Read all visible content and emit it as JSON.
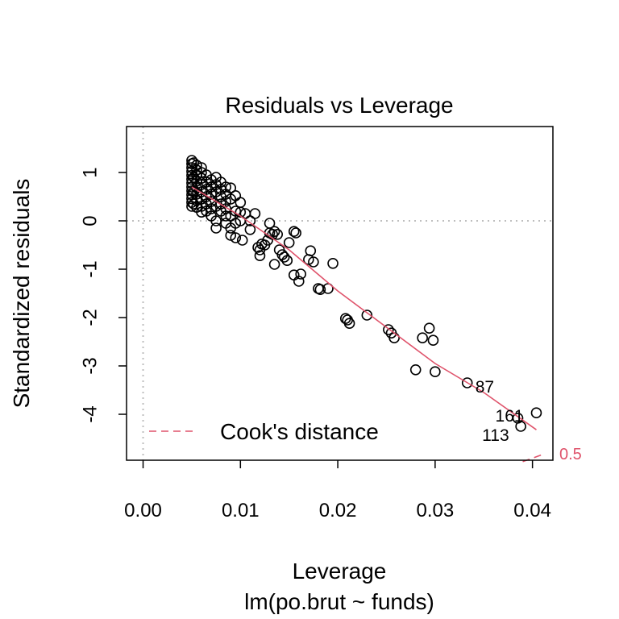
{
  "chart_data": {
    "type": "scatter",
    "title": "Residuals vs Leverage",
    "xlabel": "Leverage",
    "sublabel": "lm(po.brut ~ funds)",
    "ylabel": "Standardized residuals",
    "xlim": [
      -0.0017,
      0.0421
    ],
    "ylim": [
      -4.95,
      1.95
    ],
    "x_ticks": [
      0.0,
      0.01,
      0.02,
      0.03,
      0.04
    ],
    "x_tick_labels": [
      "0.00",
      "0.01",
      "0.02",
      "0.03",
      "0.04"
    ],
    "y_ticks": [
      -4,
      -3,
      -2,
      -1,
      0,
      1
    ],
    "y_tick_labels": [
      "-4",
      "-3",
      "-2",
      "-1",
      "0",
      "1"
    ],
    "points": [
      [
        0.005,
        1.25
      ],
      [
        0.005,
        1.18
      ],
      [
        0.005,
        1.1
      ],
      [
        0.005,
        1.02
      ],
      [
        0.005,
        0.94
      ],
      [
        0.005,
        0.86
      ],
      [
        0.005,
        0.78
      ],
      [
        0.005,
        0.7
      ],
      [
        0.005,
        0.62
      ],
      [
        0.005,
        0.54
      ],
      [
        0.005,
        0.46
      ],
      [
        0.005,
        0.38
      ],
      [
        0.005,
        0.3
      ],
      [
        0.0052,
        1.2
      ],
      [
        0.0052,
        0.9
      ],
      [
        0.0052,
        0.6
      ],
      [
        0.0052,
        0.35
      ],
      [
        0.0055,
        1.15
      ],
      [
        0.0055,
        1.05
      ],
      [
        0.0055,
        0.95
      ],
      [
        0.0055,
        0.82
      ],
      [
        0.0055,
        0.68
      ],
      [
        0.0055,
        0.55
      ],
      [
        0.0055,
        0.42
      ],
      [
        0.0055,
        0.28
      ],
      [
        0.006,
        1.1
      ],
      [
        0.006,
        1.0
      ],
      [
        0.006,
        0.88
      ],
      [
        0.006,
        0.75
      ],
      [
        0.006,
        0.6
      ],
      [
        0.006,
        0.45
      ],
      [
        0.006,
        0.3
      ],
      [
        0.006,
        0.18
      ],
      [
        0.0065,
        0.95
      ],
      [
        0.0065,
        0.8
      ],
      [
        0.0065,
        0.65
      ],
      [
        0.0065,
        0.5
      ],
      [
        0.0065,
        0.35
      ],
      [
        0.0065,
        0.2
      ],
      [
        0.007,
        0.85
      ],
      [
        0.007,
        0.7
      ],
      [
        0.007,
        0.55
      ],
      [
        0.007,
        0.4
      ],
      [
        0.007,
        0.25
      ],
      [
        0.007,
        0.1
      ],
      [
        0.0075,
        0.9
      ],
      [
        0.0075,
        0.75
      ],
      [
        0.0075,
        0.6
      ],
      [
        0.0075,
        0.3
      ],
      [
        0.0075,
        0.0
      ],
      [
        0.0075,
        -0.15
      ],
      [
        0.008,
        0.8
      ],
      [
        0.008,
        0.65
      ],
      [
        0.008,
        0.5
      ],
      [
        0.008,
        0.35
      ],
      [
        0.008,
        0.2
      ],
      [
        0.0085,
        0.7
      ],
      [
        0.0085,
        0.55
      ],
      [
        0.0085,
        0.4
      ],
      [
        0.0085,
        0.25
      ],
      [
        0.0085,
        0.1
      ],
      [
        0.0085,
        -0.05
      ],
      [
        0.009,
        0.68
      ],
      [
        0.009,
        0.45
      ],
      [
        0.009,
        0.1
      ],
      [
        0.009,
        -0.15
      ],
      [
        0.009,
        -0.3
      ],
      [
        0.0095,
        0.52
      ],
      [
        0.0095,
        0.2
      ],
      [
        0.0095,
        -0.05
      ],
      [
        0.0095,
        -0.35
      ],
      [
        0.01,
        0.38
      ],
      [
        0.01,
        0.18
      ],
      [
        0.01,
        0.0
      ],
      [
        0.0102,
        -0.4
      ],
      [
        0.0105,
        0.15
      ],
      [
        0.011,
        0.0
      ],
      [
        0.011,
        -0.18
      ],
      [
        0.0115,
        0.15
      ],
      [
        0.0118,
        -0.55
      ],
      [
        0.012,
        -0.6
      ],
      [
        0.012,
        -0.72
      ],
      [
        0.0122,
        -0.48
      ],
      [
        0.0125,
        -0.5
      ],
      [
        0.0128,
        -0.4
      ],
      [
        0.013,
        -0.25
      ],
      [
        0.013,
        -0.05
      ],
      [
        0.0133,
        -0.28
      ],
      [
        0.0135,
        -0.22
      ],
      [
        0.0135,
        -0.9
      ],
      [
        0.0138,
        -0.28
      ],
      [
        0.014,
        -0.6
      ],
      [
        0.0143,
        -0.7
      ],
      [
        0.0145,
        -0.75
      ],
      [
        0.0148,
        -0.82
      ],
      [
        0.015,
        -0.45
      ],
      [
        0.0155,
        -1.12
      ],
      [
        0.0155,
        -0.22
      ],
      [
        0.0157,
        -0.25
      ],
      [
        0.016,
        -1.25
      ],
      [
        0.0162,
        -1.1
      ],
      [
        0.017,
        -0.8
      ],
      [
        0.0172,
        -0.62
      ],
      [
        0.0175,
        -0.85
      ],
      [
        0.018,
        -1.4
      ],
      [
        0.0182,
        -1.42
      ],
      [
        0.019,
        -1.4
      ],
      [
        0.0195,
        -0.88
      ],
      [
        0.0208,
        -2.02
      ],
      [
        0.021,
        -2.05
      ],
      [
        0.0212,
        -2.12
      ],
      [
        0.023,
        -1.95
      ],
      [
        0.0252,
        -2.25
      ],
      [
        0.0255,
        -2.32
      ],
      [
        0.0258,
        -2.42
      ],
      [
        0.028,
        -3.08
      ],
      [
        0.0287,
        -2.42
      ],
      [
        0.0294,
        -2.22
      ],
      [
        0.0298,
        -2.47
      ],
      [
        0.03,
        -3.12
      ],
      [
        0.0333,
        -3.35
      ],
      [
        0.0385,
        -4.08
      ],
      [
        0.0388,
        -4.25
      ],
      [
        0.0404,
        -3.97
      ]
    ],
    "labeled_points": [
      {
        "label": "87",
        "x": 0.0333,
        "y": -3.35
      },
      {
        "label": "161",
        "x": 0.0385,
        "y": -4.08
      },
      {
        "label": "113",
        "x": 0.0388,
        "y": -4.25
      }
    ],
    "smoother": [
      [
        0.005,
        0.7
      ],
      [
        0.01,
        0.1
      ],
      [
        0.015,
        -0.6
      ],
      [
        0.02,
        -1.45
      ],
      [
        0.025,
        -2.2
      ],
      [
        0.03,
        -2.95
      ],
      [
        0.035,
        -3.55
      ],
      [
        0.0404,
        -4.32
      ]
    ],
    "cook_contour": {
      "label": "0.5",
      "points": [
        [
          0.039,
          -4.98
        ],
        [
          0.0412,
          -4.82
        ]
      ]
    },
    "legend": {
      "label": "Cook's distance",
      "position": "bottom-left"
    },
    "colors": {
      "points": "#000000",
      "smoother": "#DF536B",
      "cook": "#DF536B",
      "reference": "#BEBEBE"
    }
  }
}
